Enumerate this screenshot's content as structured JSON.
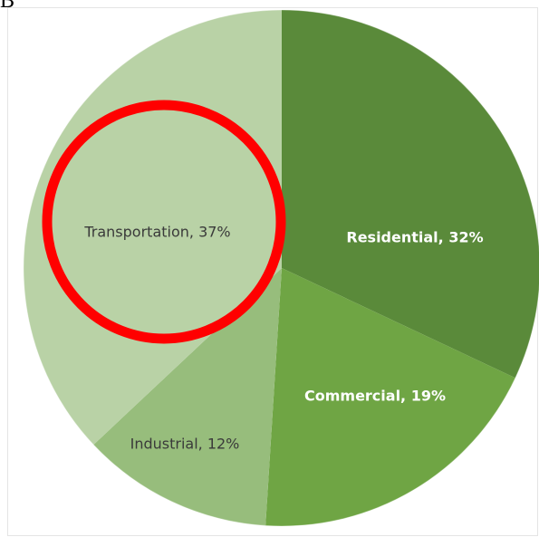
{
  "panel_label": "B",
  "chart_data": {
    "type": "pie",
    "slices": [
      {
        "label": "Residential",
        "value": 32,
        "display": "Residential, 32%",
        "color": "#5a8a3a",
        "text_color": "#ffffff"
      },
      {
        "label": "Commercial",
        "value": 19,
        "display": "Commercial, 19%",
        "color": "#6fa544",
        "text_color": "#ffffff"
      },
      {
        "label": "Industrial",
        "value": 12,
        "display": "Industrial, 12%",
        "color": "#97bd7c",
        "text_color": "#3a3a3a"
      },
      {
        "label": "Transportation",
        "value": 37,
        "display": "Transportation, 37%",
        "color": "#b9d2a6",
        "text_color": "#3a3a3a"
      }
    ],
    "start": "12 o'clock",
    "direction": "clockwise",
    "highlight": {
      "target": "Transportation",
      "shape": "circle",
      "color": "#ff0000"
    }
  }
}
